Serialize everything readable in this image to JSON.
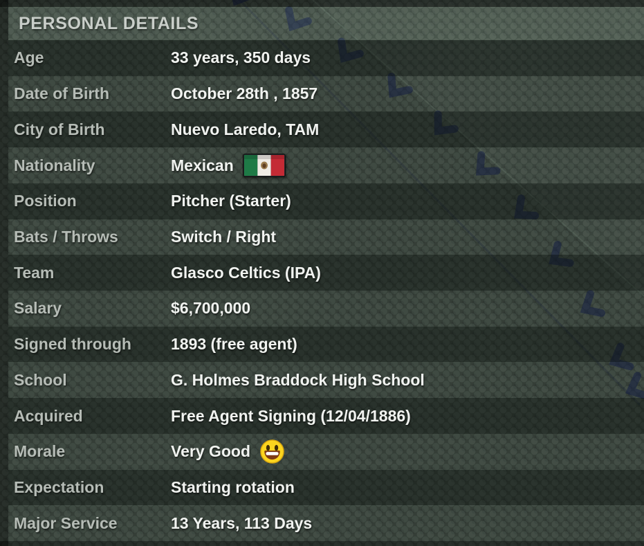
{
  "panel": {
    "title": "PERSONAL DETAILS",
    "rows": [
      {
        "key": "age",
        "label": "Age",
        "value": "33 years, 350 days"
      },
      {
        "key": "date-of-birth",
        "label": "Date of Birth",
        "value": "October 28th , 1857"
      },
      {
        "key": "city-of-birth",
        "label": "City of Birth",
        "value": "Nuevo Laredo, TAM"
      },
      {
        "key": "nationality",
        "label": "Nationality",
        "value": "Mexican",
        "icon": "mexico-flag-icon"
      },
      {
        "key": "position",
        "label": "Position",
        "value": "Pitcher (Starter)"
      },
      {
        "key": "bats-throws",
        "label": "Bats / Throws",
        "value": "Switch / Right"
      },
      {
        "key": "team",
        "label": "Team",
        "value": "Glasco Celtics (IPA)"
      },
      {
        "key": "salary",
        "label": "Salary",
        "value": "$6,700,000"
      },
      {
        "key": "signed-through",
        "label": "Signed through",
        "value": "1893 (free agent)"
      },
      {
        "key": "school",
        "label": "School",
        "value": "G. Holmes Braddock High School"
      },
      {
        "key": "acquired",
        "label": "Acquired",
        "value": "Free Agent Signing (12/04/1886)"
      },
      {
        "key": "morale",
        "label": "Morale",
        "value": "Very Good",
        "icon": "grinning-face-emoji-icon"
      },
      {
        "key": "expectation",
        "label": "Expectation",
        "value": "Starting rotation"
      },
      {
        "key": "major-service",
        "label": "Major Service",
        "value": "13 Years, 113 Days"
      }
    ],
    "colors": {
      "title_text": "#c9cec9",
      "label_text": "#b6bcb6",
      "value_text": "#f1f3f0",
      "stitch_navy": "#17234d",
      "flag_green": "#1e7a46",
      "flag_red": "#c42b35",
      "emoji_yellow": "#fbd51f"
    }
  }
}
